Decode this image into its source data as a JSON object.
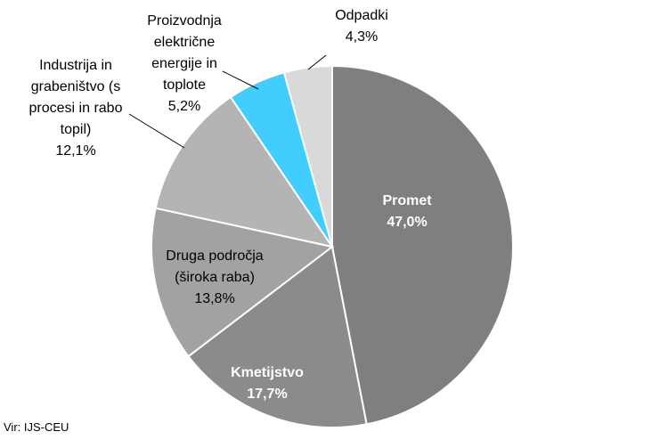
{
  "chart_data": {
    "type": "pie",
    "categories": [
      "Promet",
      "Kmetijstvo",
      "Druga področja (široka raba)",
      "Industrija in grabeništvo (s procesi in rabo topil)",
      "Proizvodnja električne energije in toplote",
      "Odpadki"
    ],
    "values": [
      47.0,
      17.7,
      13.8,
      12.1,
      5.2,
      4.3
    ],
    "value_labels": [
      "47,0%",
      "17,7%",
      "13,8%",
      "12,1%",
      "5,2%",
      "4,3%"
    ],
    "colors": [
      "#7f7f7f",
      "#8b8b8b",
      "#a2a2a2",
      "#b4b4b4",
      "#41cdfd",
      "#d9d9d9"
    ],
    "source": "Vir: IJS-CEU"
  }
}
